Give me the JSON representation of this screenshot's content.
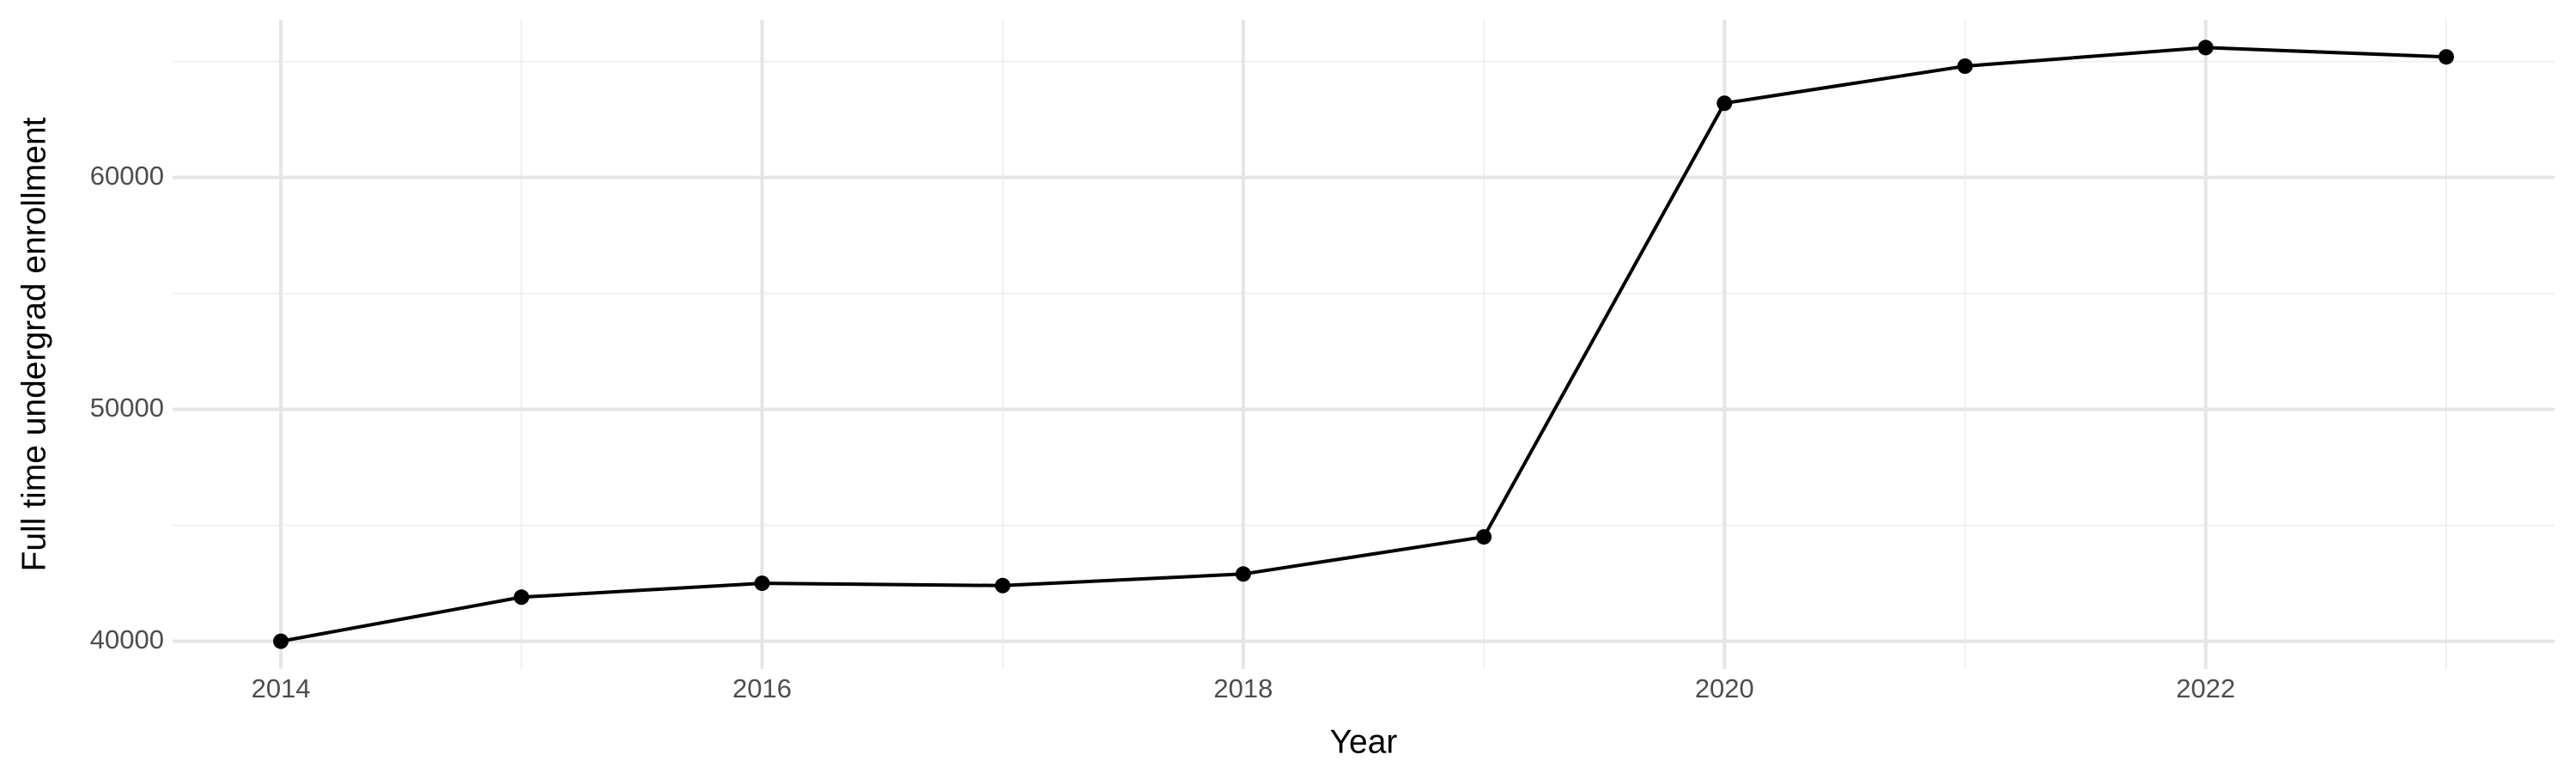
{
  "chart_data": {
    "type": "line",
    "x_label": "Year",
    "y_label": "Full time undergrad enrollment",
    "x": [
      2014,
      2015,
      2016,
      2017,
      2018,
      2019,
      2020,
      2021,
      2022,
      2023
    ],
    "series": [
      {
        "color": "#000000",
        "values": [
          40000,
          41900,
          42500,
          42400,
          42900,
          44500,
          63200,
          64800,
          65600,
          65200
        ]
      }
    ],
    "xlim": [
      2013.55,
      2023.45
    ],
    "xticks": [
      2014,
      2016,
      2018,
      2020,
      2022
    ],
    "x_minor_ticks": [
      2015,
      2017,
      2019,
      2021,
      2023
    ],
    "ylim": [
      38800,
      66800
    ],
    "yticks": [
      40000,
      50000,
      60000
    ],
    "y_minor_ticks": [
      45000,
      55000,
      65000
    ],
    "grid": true,
    "markers": true
  }
}
